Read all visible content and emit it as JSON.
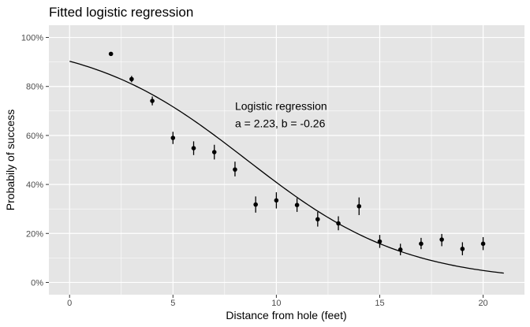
{
  "chart_data": {
    "type": "scatter",
    "title": "Fitted logistic regression",
    "xlabel": "Distance from hole (feet)",
    "ylabel": "Probabily of success",
    "xlim": [
      -1,
      22
    ],
    "ylim": [
      -0.05,
      1.05
    ],
    "x_ticks": [
      0,
      5,
      10,
      15,
      20
    ],
    "x_tick_labels": [
      "0",
      "5",
      "10",
      "15",
      "20"
    ],
    "y_ticks": [
      0,
      0.2,
      0.4,
      0.6,
      0.8,
      1.0
    ],
    "y_tick_labels": [
      "0%",
      "20%",
      "40%",
      "60%",
      "80%",
      "100%"
    ],
    "grid": true,
    "background": "#e5e5e5",
    "grid_color": "#ffffff",
    "point_color": "#000000",
    "annotation": {
      "lines": [
        "Logistic regression",
        "a = 2.23, b = -0.26"
      ],
      "x": 8,
      "y": 0.72
    },
    "fitted_curve": {
      "type": "logistic",
      "a": 2.23,
      "b": -0.26,
      "x_range": [
        0,
        21
      ]
    },
    "points": [
      {
        "x": 2,
        "y": 0.933,
        "lo": 0.933,
        "hi": 0.933
      },
      {
        "x": 3,
        "y": 0.83,
        "lo": 0.817,
        "hi": 0.843
      },
      {
        "x": 4,
        "y": 0.741,
        "lo": 0.723,
        "hi": 0.759
      },
      {
        "x": 5,
        "y": 0.59,
        "lo": 0.565,
        "hi": 0.615
      },
      {
        "x": 6,
        "y": 0.548,
        "lo": 0.52,
        "hi": 0.576
      },
      {
        "x": 7,
        "y": 0.532,
        "lo": 0.502,
        "hi": 0.562
      },
      {
        "x": 8,
        "y": 0.461,
        "lo": 0.433,
        "hi": 0.493
      },
      {
        "x": 9,
        "y": 0.318,
        "lo": 0.285,
        "hi": 0.351
      },
      {
        "x": 10,
        "y": 0.335,
        "lo": 0.302,
        "hi": 0.368
      },
      {
        "x": 11,
        "y": 0.316,
        "lo": 0.288,
        "hi": 0.344
      },
      {
        "x": 12,
        "y": 0.258,
        "lo": 0.228,
        "hi": 0.288
      },
      {
        "x": 13,
        "y": 0.241,
        "lo": 0.213,
        "hi": 0.27
      },
      {
        "x": 14,
        "y": 0.311,
        "lo": 0.275,
        "hi": 0.347
      },
      {
        "x": 15,
        "y": 0.167,
        "lo": 0.141,
        "hi": 0.194
      },
      {
        "x": 16,
        "y": 0.134,
        "lo": 0.111,
        "hi": 0.158
      },
      {
        "x": 17,
        "y": 0.158,
        "lo": 0.136,
        "hi": 0.182
      },
      {
        "x": 18,
        "y": 0.175,
        "lo": 0.148,
        "hi": 0.198
      },
      {
        "x": 19,
        "y": 0.137,
        "lo": 0.111,
        "hi": 0.164
      },
      {
        "x": 20,
        "y": 0.158,
        "lo": 0.132,
        "hi": 0.185
      }
    ]
  }
}
